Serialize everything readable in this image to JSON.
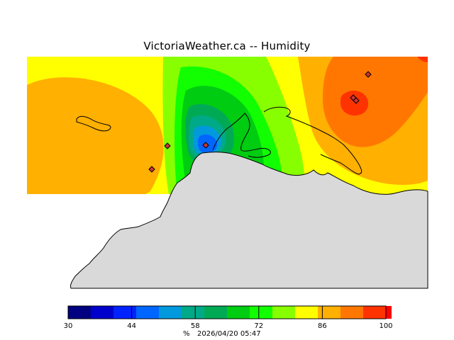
{
  "title": "VictoriaWeather.ca -- Humidity",
  "legend": {
    "unit": "%",
    "timestamp": "2026/04/20 05:47",
    "range": [
      30,
      100
    ],
    "tick_labels": [
      "30",
      "44",
      "58",
      "72",
      "86",
      "100"
    ],
    "bands": [
      {
        "from": 30,
        "to": 35,
        "color": "#000080"
      },
      {
        "from": 35,
        "to": 40,
        "color": "#0000cc"
      },
      {
        "from": 40,
        "to": 45,
        "color": "#0022ff"
      },
      {
        "from": 45,
        "to": 50,
        "color": "#0066ff"
      },
      {
        "from": 50,
        "to": 55,
        "color": "#0099dd"
      },
      {
        "from": 55,
        "to": 60,
        "color": "#00aa88"
      },
      {
        "from": 60,
        "to": 65,
        "color": "#00aa55"
      },
      {
        "from": 65,
        "to": 70,
        "color": "#00cc11"
      },
      {
        "from": 70,
        "to": 75,
        "color": "#11ff00"
      },
      {
        "from": 75,
        "to": 80,
        "color": "#88ff00"
      },
      {
        "from": 80,
        "to": 85,
        "color": "#ffff00"
      },
      {
        "from": 85,
        "to": 90,
        "color": "#ffb000"
      },
      {
        "from": 90,
        "to": 95,
        "color": "#ff7700"
      },
      {
        "from": 95,
        "to": 100,
        "color": "#ff3300"
      },
      {
        "from": 100,
        "to": 105,
        "color": "#ff0000"
      }
    ]
  },
  "colors": {
    "land": "#d9d9d9",
    "station_marker": "#cc3333",
    "background": "#ffffff"
  }
}
